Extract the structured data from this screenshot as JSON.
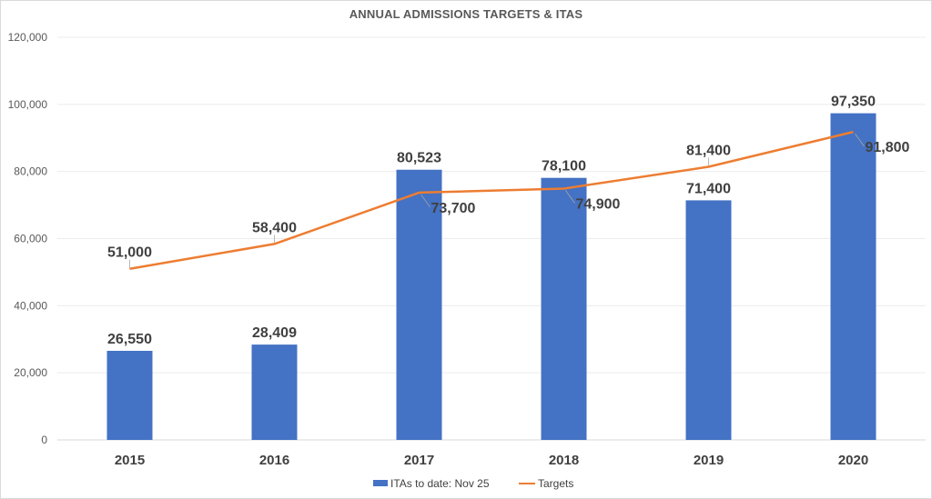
{
  "chart_data": {
    "type": "bar",
    "title": "ANNUAL ADMISSIONS TARGETS & ITAS",
    "xlabel": "",
    "ylabel": "",
    "categories": [
      "2015",
      "2016",
      "2017",
      "2018",
      "2019",
      "2020"
    ],
    "ylim": [
      0,
      120000
    ],
    "yticks": [
      0,
      20000,
      40000,
      60000,
      80000,
      100000,
      120000
    ],
    "ytick_labels": [
      "0",
      "20,000",
      "40,000",
      "60,000",
      "80,000",
      "100,000",
      "120,000"
    ],
    "grid": true,
    "legend_position": "bottom",
    "series": [
      {
        "name": "ITAs to date: Nov 25",
        "type": "bar",
        "color": "#4472C4",
        "values": [
          26550,
          28409,
          80523,
          78100,
          71400,
          97350
        ],
        "labels": [
          "26,550",
          "28,409",
          "80,523",
          "78,100",
          "71,400",
          "97,350"
        ]
      },
      {
        "name": "Targets",
        "type": "line",
        "color": "#ED7D31",
        "values": [
          51000,
          58400,
          73700,
          74900,
          81400,
          91800
        ],
        "labels": [
          "51,000",
          "58,400",
          "73,700",
          "74,900",
          "81,400",
          "91,800"
        ]
      }
    ]
  }
}
